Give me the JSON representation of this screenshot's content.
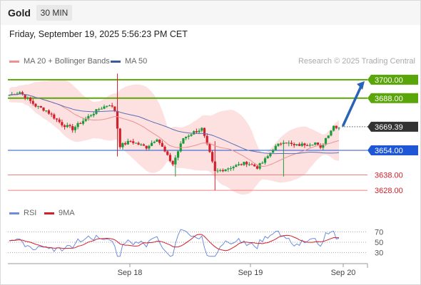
{
  "header": {
    "title": "Gold",
    "interval": "30 MIN"
  },
  "datetime": "Friday, September 19, 2025 5:56:23 PM CET",
  "legend": {
    "ma20": "MA 20 + Bollinger Bands",
    "ma50": "MA 50",
    "credit": "Research © 2025 Trading Central",
    "rsi": "RSI",
    "rsi_ma": "9MA"
  },
  "colors": {
    "up": "#1a9c3a",
    "down": "#d1202a",
    "ma20": "#f09090",
    "ma50": "#5a70b8",
    "band": "#fde0e0",
    "resistance": "#5aa60a",
    "pivot": "#1e56d6",
    "support": "#f08080",
    "arrow": "#2a63b6",
    "rsi": "#6d8be0",
    "rsi_ma": "#d3202a"
  },
  "chart_data": [
    {
      "type": "candlestick",
      "x_ticks": [
        "Sep 18",
        "Sep 19",
        "Sep 20"
      ],
      "ylim": [
        3622,
        3706
      ],
      "current_price": 3669.39,
      "levels": [
        {
          "value": 3700.0,
          "label": "3700.00",
          "kind": "resistance"
        },
        {
          "value": 3688.0,
          "label": "3688.00",
          "kind": "resistance"
        },
        {
          "value": 3669.39,
          "label": "3669.39",
          "kind": "current"
        },
        {
          "value": 3654.0,
          "label": "3654.00",
          "kind": "pivot"
        },
        {
          "value": 3638.0,
          "label": "3638.00",
          "kind": "support"
        },
        {
          "value": 3628.0,
          "label": "3628.00",
          "kind": "support"
        }
      ],
      "forecast_target": 3700.0
    },
    {
      "type": "line",
      "name": "RSI",
      "ylim": [
        20,
        80
      ],
      "y_ticks": [
        70,
        50,
        30
      ]
    }
  ]
}
